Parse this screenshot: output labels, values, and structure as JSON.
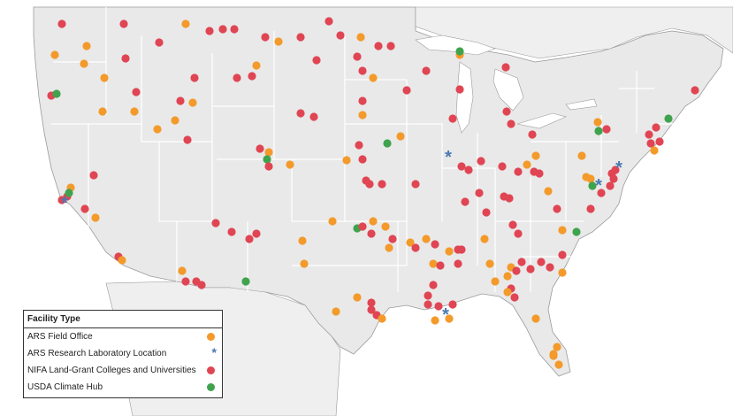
{
  "legend": {
    "title": "Facility Type",
    "items": [
      {
        "label": "ARS Field Office",
        "color": "#f39a2b",
        "shape": "circle"
      },
      {
        "label": "ARS Research Laboratory Location",
        "color": "#4b78b1",
        "shape": "asterisk"
      },
      {
        "label": "NIFA Land-Grant Colleges and Universities",
        "color": "#e04553",
        "shape": "circle"
      },
      {
        "label": "USDA Climate Hub",
        "color": "#3fa34d",
        "shape": "circle"
      }
    ]
  },
  "colors": {
    "land": "#e9e9e9",
    "border": "#ffffff",
    "coast": "#9a9a9a",
    "water": "#ffffff"
  }
}
